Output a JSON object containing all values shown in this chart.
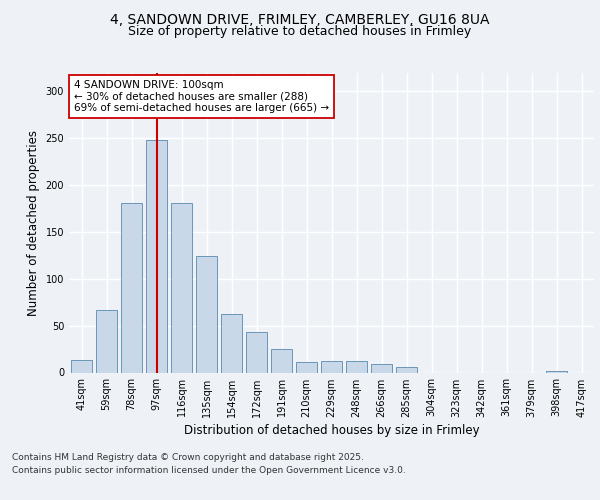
{
  "title_line1": "4, SANDOWN DRIVE, FRIMLEY, CAMBERLEY, GU16 8UA",
  "title_line2": "Size of property relative to detached houses in Frimley",
  "xlabel": "Distribution of detached houses by size in Frimley",
  "ylabel": "Number of detached properties",
  "categories": [
    "41sqm",
    "59sqm",
    "78sqm",
    "97sqm",
    "116sqm",
    "135sqm",
    "154sqm",
    "172sqm",
    "191sqm",
    "210sqm",
    "229sqm",
    "248sqm",
    "266sqm",
    "285sqm",
    "304sqm",
    "323sqm",
    "342sqm",
    "361sqm",
    "379sqm",
    "398sqm",
    "417sqm"
  ],
  "values": [
    13,
    67,
    181,
    248,
    181,
    124,
    62,
    43,
    25,
    11,
    12,
    12,
    9,
    6,
    0,
    0,
    0,
    0,
    0,
    2,
    0
  ],
  "bar_color": "#c8d8e8",
  "bar_edge_color": "#5a8ab0",
  "highlight_index": 3,
  "highlight_line_color": "#cc0000",
  "annotation_text": "4 SANDOWN DRIVE: 100sqm\n← 30% of detached houses are smaller (288)\n69% of semi-detached houses are larger (665) →",
  "annotation_box_color": "#ffffff",
  "annotation_box_edge_color": "#cc0000",
  "ylim": [
    0,
    320
  ],
  "yticks": [
    0,
    50,
    100,
    150,
    200,
    250,
    300
  ],
  "background_color": "#eef2f7",
  "plot_bg_color": "#eef2f7",
  "footer_line1": "Contains HM Land Registry data © Crown copyright and database right 2025.",
  "footer_line2": "Contains public sector information licensed under the Open Government Licence v3.0.",
  "grid_color": "#ffffff",
  "title_fontsize": 10,
  "subtitle_fontsize": 9,
  "axis_label_fontsize": 8.5,
  "tick_fontsize": 7,
  "annotation_fontsize": 7.5,
  "footer_fontsize": 6.5
}
